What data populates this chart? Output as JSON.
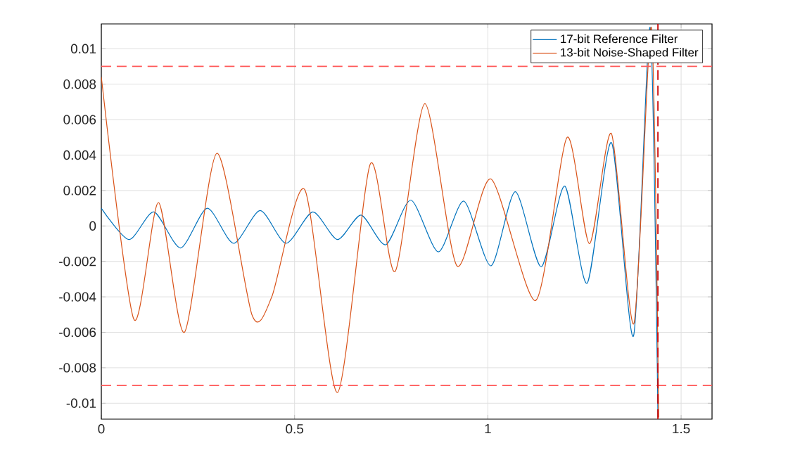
{
  "chart_data": {
    "type": "line",
    "xlim": [
      0,
      1.58
    ],
    "ylim": [
      -0.0109,
      0.0114
    ],
    "xticks": [
      0,
      0.5,
      1,
      1.5
    ],
    "yticks": [
      -0.01,
      -0.008,
      -0.006,
      -0.004,
      -0.002,
      0,
      0.002,
      0.004,
      0.006,
      0.008,
      0.01
    ],
    "grid": true,
    "legend": "top right",
    "line_style": "solid",
    "ref_lines": [
      {
        "axis": "y",
        "value": 0.009,
        "color": "#ff5a5a",
        "line_style": "dashed"
      },
      {
        "axis": "y",
        "value": -0.009,
        "color": "#ff5a5a",
        "line_style": "dashed"
      },
      {
        "axis": "x",
        "value": 1.44,
        "color": "#cc0000",
        "line_style": "dashed"
      }
    ],
    "series": [
      {
        "name": "17-bit Reference Filter",
        "color": "#0072bd",
        "x": [
          0,
          0.0715,
          0.136,
          0.205,
          0.274,
          0.342,
          0.411,
          0.478,
          0.547,
          0.611,
          0.672,
          0.736,
          0.801,
          0.872,
          0.938,
          1.008,
          1.071,
          1.138,
          1.199,
          1.257,
          1.32,
          1.377,
          1.42,
          1.44
        ],
        "values": [
          0.001,
          -0.00077,
          0.00079,
          -0.00124,
          0.001,
          -0.00098,
          0.00087,
          -0.00098,
          0.00079,
          -0.00077,
          0.00061,
          -0.00106,
          0.00146,
          -0.00146,
          0.0014,
          -0.00225,
          0.00193,
          -0.0023,
          0.00225,
          -0.00323,
          0.0047,
          -0.0062,
          0.0112,
          -0.0108
        ]
      },
      {
        "name": "13-bit Noise-Shaped Filter",
        "color": "#d95319",
        "x": [
          0,
          0.084,
          0.148,
          0.215,
          0.299,
          0.39,
          0.441,
          0.526,
          0.611,
          0.696,
          0.76,
          0.837,
          0.92,
          1.008,
          1.124,
          1.205,
          1.263,
          1.32,
          1.378,
          1.423,
          1.442
        ],
        "values": [
          0.0084,
          -0.00526,
          0.00132,
          -0.006,
          0.0041,
          -0.00503,
          -0.004,
          0.00206,
          -0.0094,
          0.0035,
          -0.00257,
          0.0069,
          -0.00225,
          0.00265,
          -0.0042,
          0.005,
          -0.001,
          0.0052,
          -0.0055,
          0.0112,
          -0.0108
        ]
      }
    ]
  }
}
